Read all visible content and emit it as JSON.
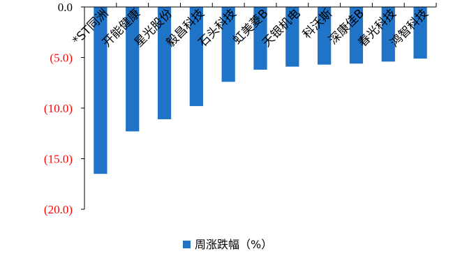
{
  "chart_data": {
    "type": "bar",
    "categories": [
      "*ST同洲",
      "开能健康",
      "星光股份",
      "毅昌科技",
      "石头科技",
      "虹美菱B",
      "天银机电",
      "科沃斯",
      "深康佳B",
      "春光科技",
      "鸿智科技"
    ],
    "series": [
      {
        "name": "周涨跌幅（%）",
        "values": [
          -16.5,
          -12.3,
          -11.1,
          -9.8,
          -7.4,
          -6.2,
          -5.9,
          -5.7,
          -5.6,
          -5.4,
          -5.1
        ]
      }
    ],
    "y_ticks": [
      "0.0",
      "(5.0)",
      "(10.0)",
      "(15.0)",
      "(20.0)"
    ],
    "ylim": [
      -20,
      0
    ],
    "legend_position": "bottom-center",
    "grid": false
  },
  "colors": {
    "bar": "#1F74C8",
    "negative_tick": "#FF0000",
    "zero_tick": "#000000",
    "axis": "#000000"
  }
}
